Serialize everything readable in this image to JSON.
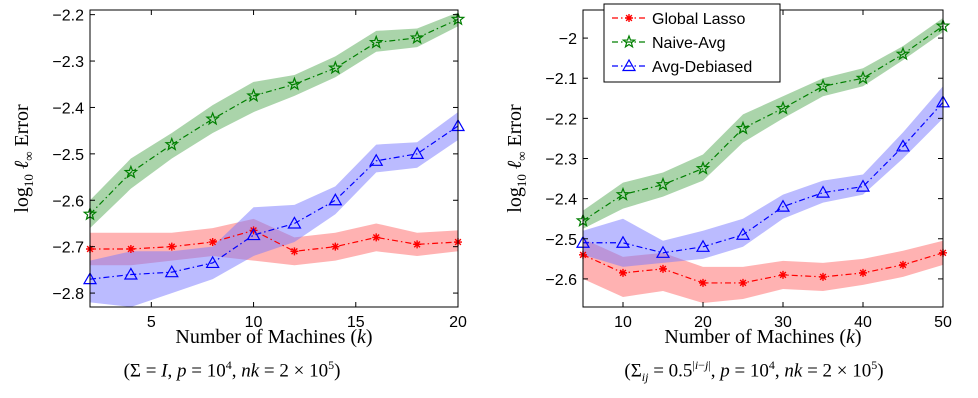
{
  "chart_data": [
    {
      "type": "line",
      "xlabel": "Number of Machines (k)",
      "ylabel": "log10 ℓ∞ Error",
      "caption": "(Σ = I, p = 10⁴, nk = 2 × 10⁵)",
      "xlim": [
        2,
        20
      ],
      "ylim": [
        -2.83,
        -2.19
      ],
      "xticks": [
        5,
        10,
        15,
        20
      ],
      "yticks": [
        -2.8,
        -2.7,
        -2.6,
        -2.5,
        -2.4,
        -2.3,
        -2.2
      ],
      "ytick_labels": [
        "−2.8",
        "−2.7",
        "−2.6",
        "−2.5",
        "−2.4",
        "−2.3",
        "−2.2"
      ],
      "x": [
        2,
        4,
        6,
        8,
        10,
        12,
        14,
        16,
        18,
        20
      ],
      "legend": false,
      "series": [
        {
          "name": "Global Lasso",
          "color": "#ff0000",
          "band_color": "#ff6666",
          "marker": "asterisk",
          "values": [
            -2.705,
            -2.705,
            -2.7,
            -2.69,
            -2.665,
            -2.71,
            -2.7,
            -2.68,
            -2.695,
            -2.69
          ],
          "lower": [
            -2.74,
            -2.74,
            -2.73,
            -2.72,
            -2.73,
            -2.74,
            -2.73,
            -2.71,
            -2.72,
            -2.71
          ],
          "upper": [
            -2.67,
            -2.67,
            -2.67,
            -2.66,
            -2.64,
            -2.68,
            -2.67,
            -2.65,
            -2.67,
            -2.665
          ]
        },
        {
          "name": "Naive-Avg",
          "color": "#007f00",
          "band_color": "#55aa55",
          "marker": "star",
          "values": [
            -2.63,
            -2.54,
            -2.48,
            -2.425,
            -2.375,
            -2.35,
            -2.315,
            -2.26,
            -2.25,
            -2.21
          ],
          "lower": [
            -2.66,
            -2.575,
            -2.51,
            -2.455,
            -2.41,
            -2.375,
            -2.335,
            -2.28,
            -2.27,
            -2.225
          ],
          "upper": [
            -2.6,
            -2.51,
            -2.455,
            -2.395,
            -2.345,
            -2.33,
            -2.29,
            -2.235,
            -2.23,
            -2.195
          ]
        },
        {
          "name": "Avg-Debiased",
          "color": "#0000ff",
          "band_color": "#7777ff",
          "marker": "triangle",
          "values": [
            -2.77,
            -2.76,
            -2.755,
            -2.735,
            -2.675,
            -2.65,
            -2.6,
            -2.515,
            -2.5,
            -2.44
          ],
          "lower": [
            -2.82,
            -2.83,
            -2.8,
            -2.77,
            -2.72,
            -2.69,
            -2.63,
            -2.54,
            -2.53,
            -2.47
          ],
          "upper": [
            -2.73,
            -2.71,
            -2.71,
            -2.7,
            -2.615,
            -2.61,
            -2.57,
            -2.48,
            -2.475,
            -2.41
          ]
        }
      ]
    },
    {
      "type": "line",
      "xlabel": "Number of Machines (k)",
      "ylabel": "log10 ℓ∞ Error",
      "caption": "(Σij = 0.5^|i−j|, p = 10⁴, nk = 2 × 10⁵)",
      "xlim": [
        5,
        50
      ],
      "ylim": [
        -2.67,
        -1.93
      ],
      "xticks": [
        10,
        20,
        30,
        40,
        50
      ],
      "yticks": [
        -2.6,
        -2.5,
        -2.4,
        -2.3,
        -2.2,
        -2.1,
        -2.0
      ],
      "ytick_labels": [
        "−2.6",
        "−2.5",
        "−2.4",
        "−2.3",
        "−2.2",
        "−2.1",
        "−2"
      ],
      "x": [
        5,
        10,
        15,
        20,
        25,
        30,
        35,
        40,
        45,
        50
      ],
      "legend": true,
      "legend_position": "top-left",
      "series": [
        {
          "name": "Global Lasso",
          "color": "#ff0000",
          "band_color": "#ff6666",
          "marker": "asterisk",
          "values": [
            -2.54,
            -2.585,
            -2.575,
            -2.61,
            -2.61,
            -2.59,
            -2.595,
            -2.585,
            -2.565,
            -2.535
          ],
          "lower": [
            -2.6,
            -2.645,
            -2.63,
            -2.66,
            -2.65,
            -2.625,
            -2.63,
            -2.615,
            -2.595,
            -2.565
          ],
          "upper": [
            -2.5,
            -2.545,
            -2.535,
            -2.57,
            -2.57,
            -2.555,
            -2.56,
            -2.55,
            -2.53,
            -2.505
          ]
        },
        {
          "name": "Naive-Avg",
          "color": "#007f00",
          "band_color": "#55aa55",
          "marker": "star",
          "values": [
            -2.455,
            -2.39,
            -2.365,
            -2.325,
            -2.225,
            -2.175,
            -2.12,
            -2.1,
            -2.04,
            -1.97
          ],
          "lower": [
            -2.475,
            -2.425,
            -2.395,
            -2.355,
            -2.26,
            -2.2,
            -2.145,
            -2.12,
            -2.055,
            -1.985
          ],
          "upper": [
            -2.43,
            -2.36,
            -2.335,
            -2.29,
            -2.19,
            -2.145,
            -2.1,
            -2.075,
            -2.02,
            -1.95
          ]
        },
        {
          "name": "Avg-Debiased",
          "color": "#0000ff",
          "band_color": "#7777ff",
          "marker": "triangle",
          "values": [
            -2.51,
            -2.51,
            -2.535,
            -2.52,
            -2.49,
            -2.42,
            -2.385,
            -2.37,
            -2.27,
            -2.16
          ],
          "lower": [
            -2.54,
            -2.57,
            -2.56,
            -2.55,
            -2.52,
            -2.45,
            -2.41,
            -2.39,
            -2.3,
            -2.2
          ],
          "upper": [
            -2.48,
            -2.45,
            -2.505,
            -2.48,
            -2.45,
            -2.39,
            -2.355,
            -2.34,
            -2.235,
            -2.12
          ]
        }
      ]
    }
  ]
}
